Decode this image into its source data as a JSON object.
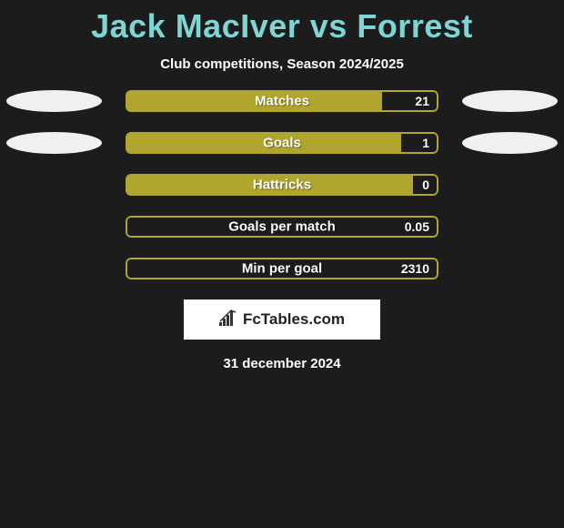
{
  "title": "Jack MacIver vs Forrest",
  "subtitle": "Club competitions, Season 2024/2025",
  "theme": {
    "background_color": "#1c1c1c",
    "title_color": "#7fd4d4",
    "text_color": "#ffffff",
    "bar_fill_color": "#b0a52e",
    "bar_border_color": "#b0a52e",
    "ellipse_color": "#f0f0f0",
    "logo_bg": "#ffffff",
    "title_fontsize": 36,
    "subtitle_fontsize": 15,
    "label_fontsize": 15,
    "value_fontsize": 14
  },
  "stats": [
    {
      "label": "Matches",
      "left_value": "",
      "right_value": "21",
      "left_fill_pct": 82,
      "right_fill_pct": 0,
      "show_ellipse_left": true,
      "show_ellipse_right": true
    },
    {
      "label": "Goals",
      "left_value": "",
      "right_value": "1",
      "left_fill_pct": 88,
      "right_fill_pct": 0,
      "show_ellipse_left": true,
      "show_ellipse_right": true
    },
    {
      "label": "Hattricks",
      "left_value": "",
      "right_value": "0",
      "left_fill_pct": 92,
      "right_fill_pct": 0,
      "show_ellipse_left": false,
      "show_ellipse_right": false
    },
    {
      "label": "Goals per match",
      "left_value": "",
      "right_value": "0.05",
      "left_fill_pct": 0,
      "right_fill_pct": 0,
      "show_ellipse_left": false,
      "show_ellipse_right": false
    },
    {
      "label": "Min per goal",
      "left_value": "",
      "right_value": "2310",
      "left_fill_pct": 0,
      "right_fill_pct": 0,
      "show_ellipse_left": false,
      "show_ellipse_right": false
    }
  ],
  "logo_text": "FcTables.com",
  "date": "31 december 2024"
}
